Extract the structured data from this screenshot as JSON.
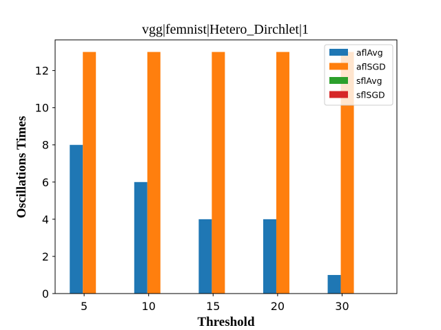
{
  "chart_data": {
    "type": "bar",
    "title": "vgg|femnist|Hetero_Dirchlet|1",
    "xlabel": "Threshold",
    "ylabel": "Oscillations Times",
    "categories": [
      "5",
      "10",
      "15",
      "20",
      "30"
    ],
    "ylim": [
      0,
      13.65
    ],
    "yticks": [
      0,
      2,
      4,
      6,
      8,
      10,
      12
    ],
    "grid": false,
    "legend_position": "top-right",
    "series": [
      {
        "name": "aflAvg",
        "color": "#1f77b4",
        "values": [
          8,
          6,
          4,
          4,
          1
        ]
      },
      {
        "name": "aflSGD",
        "color": "#ff7f0e",
        "values": [
          13,
          13,
          13,
          13,
          13
        ]
      },
      {
        "name": "sflAvg",
        "color": "#2ca02c",
        "values": [
          0,
          0,
          0,
          0,
          0
        ]
      },
      {
        "name": "sflSGD",
        "color": "#d62728",
        "values": [
          0,
          0,
          0,
          0,
          0
        ]
      }
    ]
  }
}
